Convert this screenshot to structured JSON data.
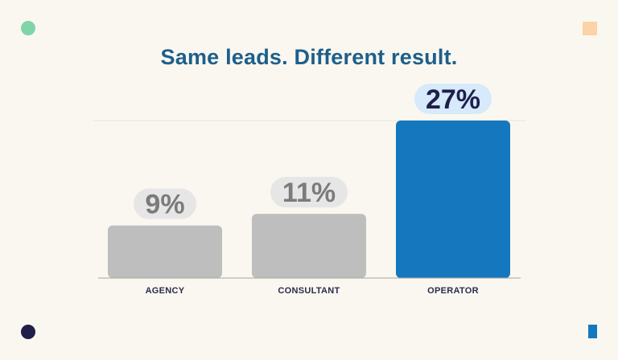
{
  "title": "Same leads. Different result.",
  "colors": {
    "background": "#faf7f0",
    "title": "#1c5f8c",
    "bar_muted": "#bebebe",
    "bar_highlight": "#1578be",
    "label_bg_muted": "#e6e6e6",
    "label_bg_highlight": "#d6eafb",
    "label_text_muted": "#7b7b7b",
    "label_text_highlight": "#1f1f4a",
    "deco_green": "#7fd4a8",
    "deco_navy": "#1f1f4a",
    "deco_peach": "#fbd3a6",
    "deco_blue": "#1578be"
  },
  "chart_data": {
    "type": "bar",
    "title": "Same leads. Different result.",
    "categories": [
      "AGENCY",
      "CONSULTANT",
      "OPERATOR"
    ],
    "values": [
      9,
      11,
      27
    ],
    "data_labels": [
      "9%",
      "11%",
      "27%"
    ],
    "highlight_index": 2,
    "xlabel": "",
    "ylabel": "",
    "ylim": [
      0,
      27
    ],
    "grid": false,
    "legend": "none"
  }
}
